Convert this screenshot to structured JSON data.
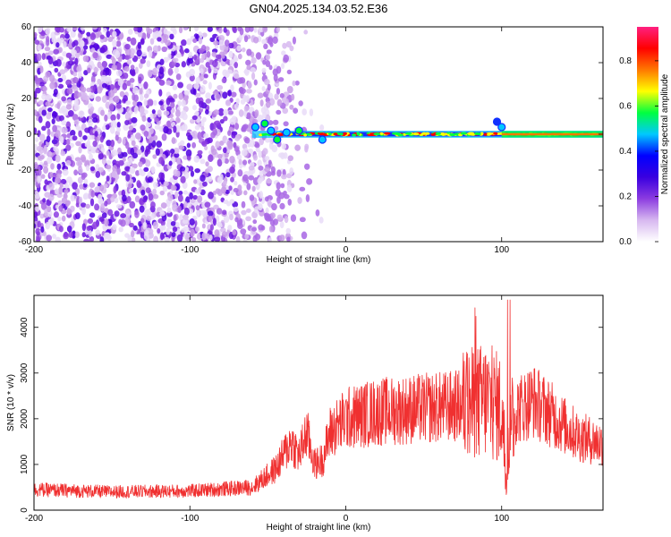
{
  "title": "GN04.2025.134.03.52.E36",
  "chart_data": [
    {
      "type": "heatmap",
      "xlabel": "Height of straight line (km)",
      "ylabel": "Frequency (Hz)",
      "xlim": [
        -200,
        165
      ],
      "ylim": [
        -60,
        60
      ],
      "xticks": [
        -200,
        -100,
        0,
        100
      ],
      "yticks": [
        -60,
        -40,
        -20,
        0,
        20,
        40,
        60
      ],
      "colorbar": {
        "label": "Normalized spectral amplitude",
        "range": [
          0,
          0.95
        ],
        "ticks": [
          0.0,
          0.2,
          0.4,
          0.6,
          0.8
        ],
        "colormap": [
          "#ffffff",
          "#d7b8f0",
          "#8c3ce0",
          "#3a00e0",
          "#0000ff",
          "#00c8ff",
          "#00ff40",
          "#ffff00",
          "#ff7800",
          "#ff0000",
          "#ff2080"
        ]
      },
      "signal_line": {
        "frequency": 0,
        "x_range": [
          -60,
          165
        ],
        "peak_colors": [
          "#ff0000",
          "#ffff00",
          "#00ff40"
        ]
      },
      "noise_region": {
        "x_range": [
          -200,
          -30
        ],
        "typical_amplitude": 0.15
      }
    },
    {
      "type": "line",
      "xlabel": "Height of straight line (km)",
      "ylabel": "SNR (10 * v/v)",
      "xlim": [
        -200,
        165
      ],
      "ylim": [
        0,
        4700
      ],
      "xticks": [
        -200,
        -100,
        0,
        100
      ],
      "yticks": [
        0,
        1000,
        2000,
        3000,
        4000
      ],
      "color": "#f03030",
      "envelope": {
        "x": [
          -200,
          -150,
          -100,
          -60,
          -45,
          -35,
          -30,
          -25,
          -20,
          -15,
          -10,
          0,
          20,
          40,
          60,
          80,
          90,
          100,
          103,
          106,
          110,
          120,
          130,
          140,
          150,
          165
        ],
        "y": [
          450,
          400,
          420,
          500,
          900,
          1500,
          1200,
          1700,
          1000,
          1100,
          1700,
          2000,
          2150,
          2200,
          2250,
          2300,
          2400,
          2200,
          700,
          2100,
          2200,
          2400,
          2150,
          1850,
          1600,
          1450
        ]
      }
    }
  ]
}
